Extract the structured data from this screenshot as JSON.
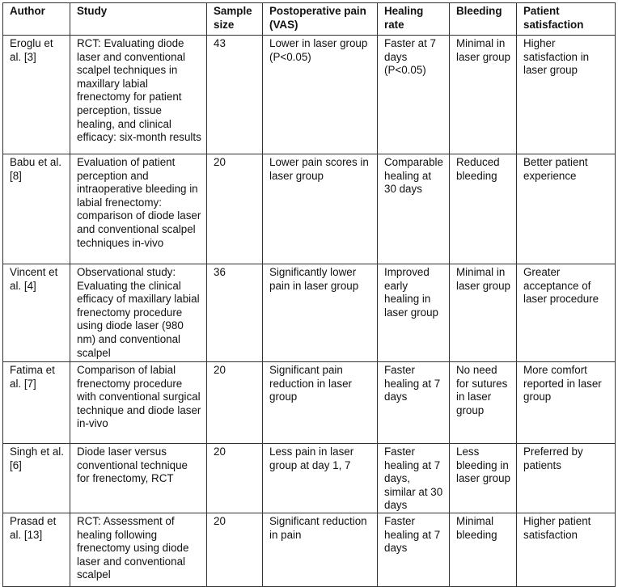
{
  "table": {
    "headers": [
      "Author",
      "Study",
      "Sample size",
      "Postoperative pain (VAS)",
      "Healing rate",
      "Bleeding",
      "Patient satisfaction"
    ],
    "rows": [
      [
        "Eroglu et al. [3]",
        "RCT: Evaluating diode laser and conventional scalpel techniques in maxillary labial frenectomy for patient perception, tissue healing, and clinical efficacy: six-month results",
        "43",
        "Lower in laser group (P<0.05)",
        "Faster at 7 days (P<0.05)",
        "Minimal in laser group",
        "Higher satisfaction in laser group"
      ],
      [
        "Babu et al. [8]",
        "Evaluation of patient perception and intraoperative bleeding in labial frenectomy: comparison of diode laser and conventional scalpel techniques in-vivo",
        "20",
        "Lower pain scores in laser group",
        "Comparable healing at 30 days",
        "Reduced bleeding",
        "Better patient experience"
      ],
      [
        "Vincent et al. [4]",
        "Observational study: Evaluating the clinical efficacy of maxillary labial frenectomy procedure using diode laser (980 nm) and conventional scalpel",
        "36",
        "Significantly lower pain in laser group",
        "Improved early healing in laser group",
        "Minimal in laser group",
        "Greater acceptance of laser procedure"
      ],
      [
        "Fatima et al. [7]",
        "Comparison of labial frenectomy procedure with conventional surgical technique and diode laser in-vivo",
        "20",
        "Significant pain reduction in laser group",
        "Faster healing at 7 days",
        "No need for sutures in laser group",
        "More comfort reported in laser group"
      ],
      [
        "Singh et al. [6]",
        "Diode laser versus conventional technique for frenectomy, RCT",
        "20",
        "Less pain in laser group at day 1, 7",
        "Faster healing at 7 days, similar at 30 days",
        "Less bleeding in laser group",
        "Preferred by patients"
      ],
      [
        "Prasad et al. [13]",
        "RCT: Assessment of healing following frenectomy using diode laser and conventional scalpel",
        "20",
        "Significant reduction in pain",
        "Faster healing at 7 days",
        "Minimal bleeding",
        "Higher patient satisfaction"
      ]
    ]
  }
}
